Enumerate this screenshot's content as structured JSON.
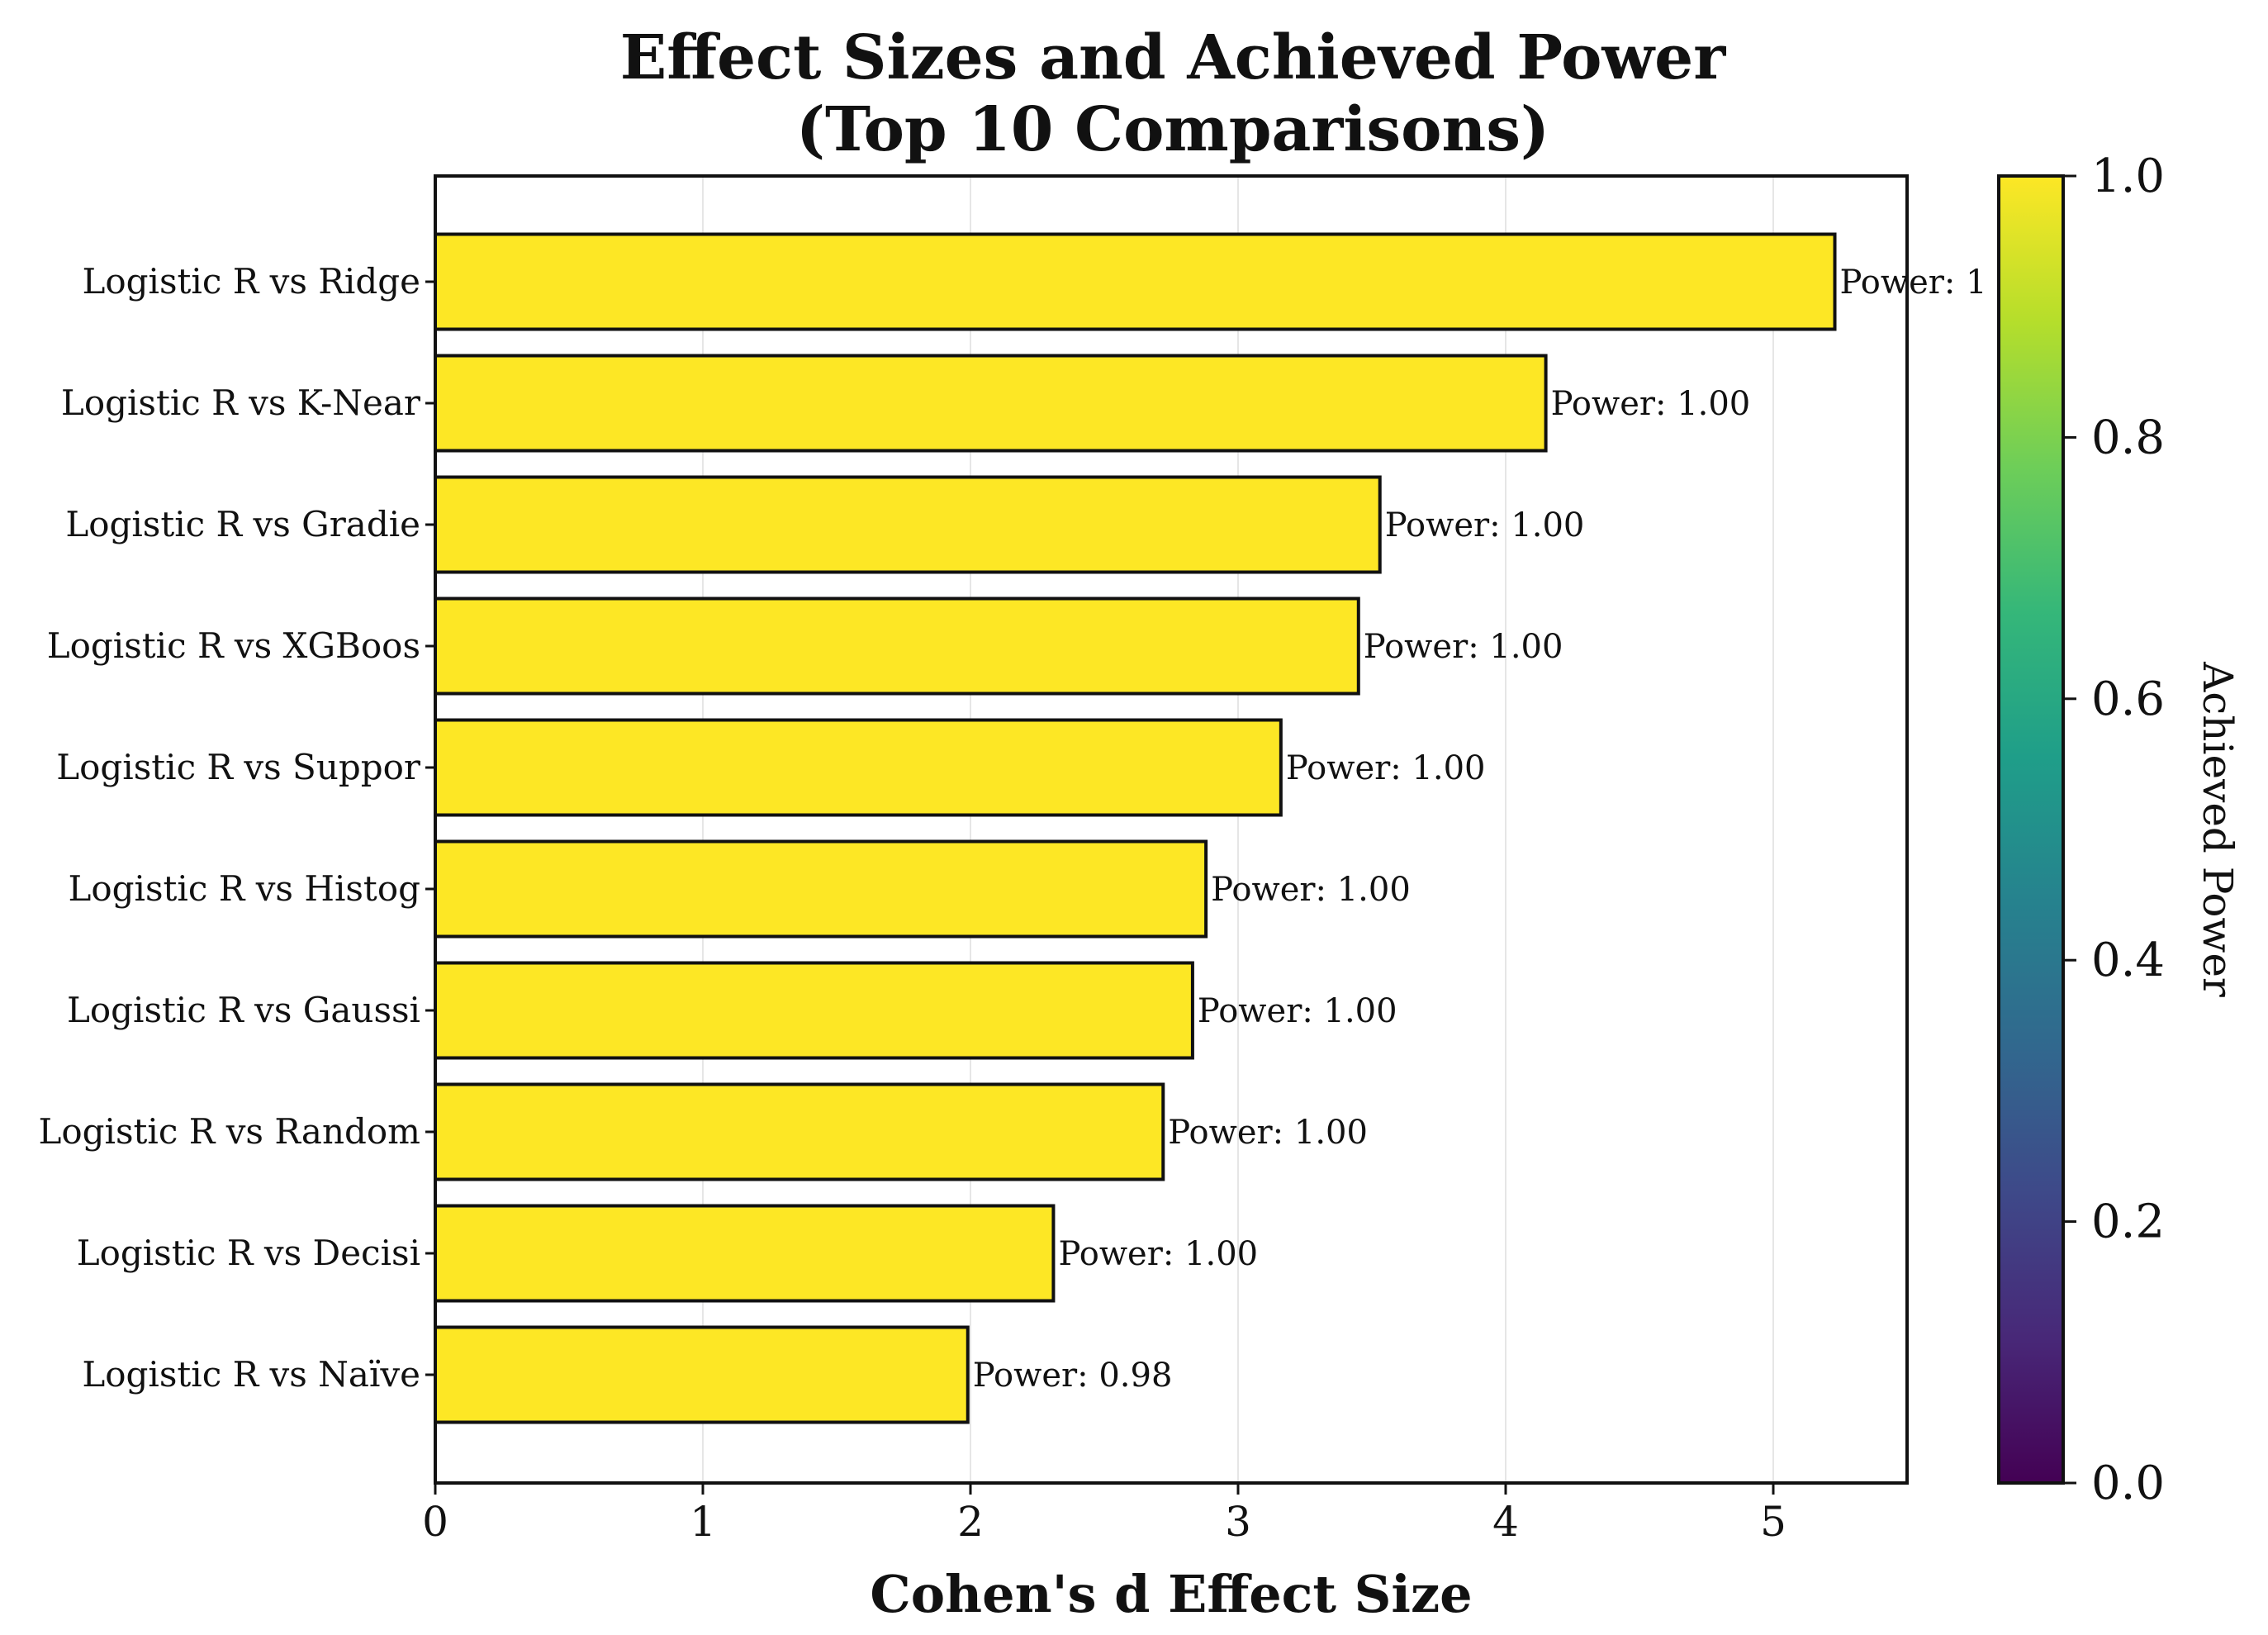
{
  "chart_data": {
    "type": "bar",
    "orientation": "horizontal",
    "title": [
      "Effect Sizes and Achieved Power",
      "(Top 10 Comparisons)"
    ],
    "xlabel": "Cohen's d Effect Size",
    "ylabel": "",
    "xlim": [
      0,
      5.5
    ],
    "xticks": [
      0,
      1,
      2,
      3,
      4,
      5
    ],
    "grid": "x-vertical",
    "categories": [
      "Logistic R vs Ridge",
      "Logistic R vs K-Near",
      "Logistic R vs Gradie",
      "Logistic R vs XGBoos",
      "Logistic R vs Suppor",
      "Logistic R vs Histog",
      "Logistic R vs Gaussi",
      "Logistic R vs Random",
      "Logistic R vs Decisi",
      "Logistic R vs Naïve"
    ],
    "values": [
      5.23,
      4.15,
      3.53,
      3.45,
      3.16,
      2.88,
      2.83,
      2.72,
      2.31,
      1.99
    ],
    "power": [
      1.0,
      1.0,
      1.0,
      1.0,
      1.0,
      1.0,
      1.0,
      1.0,
      1.0,
      0.98
    ],
    "data_labels": [
      "Power: 1",
      "Power: 1.00",
      "Power: 1.00",
      "Power: 1.00",
      "Power: 1.00",
      "Power: 1.00",
      "Power: 1.00",
      "Power: 1.00",
      "Power: 1.00",
      "Power: 0.98"
    ],
    "bar_color": "#fde725",
    "edge_color": "#111111",
    "colorbar": {
      "label": "Achieved Power",
      "range": [
        0.0,
        1.0
      ],
      "ticks": [
        0.0,
        0.2,
        0.4,
        0.6,
        0.8,
        1.0
      ],
      "tick_labels": [
        "0.0",
        "0.2",
        "0.4",
        "0.6",
        "0.8",
        "1.0"
      ],
      "colormap": "viridis",
      "colors": [
        "#440154",
        "#482878",
        "#3e4989",
        "#31688e",
        "#26828e",
        "#1f9e89",
        "#35b779",
        "#6ece58",
        "#b5de2b",
        "#fde725"
      ]
    }
  }
}
